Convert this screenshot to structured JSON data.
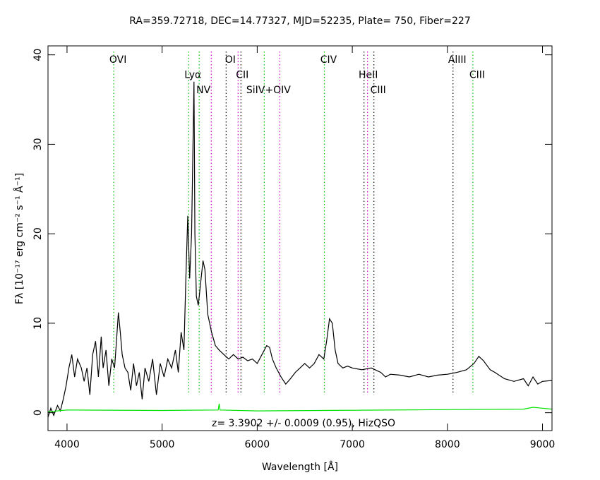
{
  "chart_data": {
    "type": "line",
    "title": "RA=359.72718, DEC=14.77327, MJD=52235, Plate=  750, Fiber=227",
    "xlabel": "Wavelength [Å]",
    "ylabel": "Fλ [10⁻¹⁷ erg cm⁻² s⁻¹ Å⁻¹]",
    "annotation": "z= 3.3902 +/- 0.0009 (0.95), HizQSO",
    "xlim": [
      3800,
      9100
    ],
    "xticks": [
      4000,
      5000,
      6000,
      7000,
      8000,
      9000
    ],
    "ylim": [
      -2,
      41
    ],
    "yticks": [
      0,
      10,
      20,
      30,
      40
    ],
    "series": [
      {
        "color": "#000000",
        "x": [
          3800,
          3830,
          3860,
          3900,
          3930,
          3960,
          3990,
          4020,
          4050,
          4080,
          4110,
          4150,
          4180,
          4210,
          4240,
          4270,
          4300,
          4330,
          4360,
          4380,
          4410,
          4440,
          4470,
          4500,
          4520,
          4540,
          4560,
          4580,
          4610,
          4640,
          4670,
          4700,
          4730,
          4760,
          4790,
          4820,
          4860,
          4900,
          4940,
          4980,
          5020,
          5060,
          5100,
          5140,
          5170,
          5200,
          5230,
          5250,
          5270,
          5290,
          5310,
          5325,
          5335,
          5345,
          5360,
          5380,
          5410,
          5430,
          5450,
          5480,
          5520,
          5560,
          5600,
          5650,
          5700,
          5750,
          5800,
          5850,
          5900,
          5950,
          6000,
          6050,
          6100,
          6130,
          6160,
          6200,
          6250,
          6300,
          6350,
          6400,
          6450,
          6500,
          6550,
          6600,
          6650,
          6700,
          6730,
          6760,
          6790,
          6820,
          6850,
          6900,
          6950,
          7000,
          7100,
          7200,
          7300,
          7350,
          7400,
          7500,
          7600,
          7700,
          7800,
          7900,
          8000,
          8100,
          8200,
          8280,
          8330,
          8380,
          8450,
          8500,
          8600,
          8700,
          8800,
          8850,
          8900,
          8950,
          9000,
          9100
        ],
        "values": [
          -0.5,
          0.5,
          -0.3,
          0.8,
          0.2,
          1.5,
          3,
          5,
          6.5,
          4,
          6,
          5,
          3.5,
          5,
          2,
          6.5,
          8,
          4,
          8.5,
          5,
          7,
          3,
          6,
          5,
          8,
          11.2,
          9,
          6.5,
          5,
          4.5,
          2.5,
          5.5,
          3,
          4.5,
          1.5,
          5,
          3.5,
          6,
          2,
          5.5,
          4,
          6,
          5,
          7,
          4.5,
          9,
          7,
          15,
          22,
          15,
          20,
          30,
          37,
          20,
          13,
          12,
          15,
          17,
          16,
          11,
          9,
          7.5,
          7,
          6.5,
          6,
          6.5,
          6,
          6.2,
          5.8,
          6,
          5.5,
          6.5,
          7.5,
          7.3,
          6,
          5,
          4,
          3.2,
          3.8,
          4.5,
          5,
          5.5,
          5,
          5.5,
          6.5,
          6,
          8,
          10.5,
          10,
          7,
          5.5,
          5,
          5.2,
          5,
          4.8,
          5,
          4.5,
          4,
          4.3,
          4.2,
          4,
          4.3,
          4,
          4.2,
          4.3,
          4.5,
          4.8,
          5.5,
          6.3,
          5.8,
          4.8,
          4.5,
          3.8,
          3.5,
          3.8,
          3,
          4,
          3.2,
          3.5,
          3.6
        ]
      },
      {
        "color": "#00e000",
        "x": [
          3800,
          4000,
          5000,
          5590,
          5600,
          5610,
          6000,
          8800,
          8900,
          9100
        ],
        "values": [
          0.1,
          0.3,
          0.25,
          0.3,
          1,
          0.3,
          0.2,
          0.4,
          0.6,
          0.4
        ]
      }
    ],
    "lines": [
      {
        "x": 4491,
        "color": "#00c000",
        "label": "OVI"
      },
      {
        "x": 5279,
        "color": "#00c000",
        "label": "Lyα"
      },
      {
        "x": 5390,
        "color": "#00c000",
        "label": "NV"
      },
      {
        "x": 5517,
        "color": "#d000d0"
      },
      {
        "x": 5673,
        "color": "#000000",
        "label": "OI"
      },
      {
        "x": 5799,
        "color": "#d000d0",
        "label": "CII"
      },
      {
        "x": 5829,
        "color": "#000000"
      },
      {
        "x": 6074,
        "color": "#00c000",
        "label": "SiIV+OIV"
      },
      {
        "x": 6238,
        "color": "#d000d0"
      },
      {
        "x": 6706,
        "color": "#00c000",
        "label": "CIV"
      },
      {
        "x": 7123,
        "color": "#000000",
        "label": "HeII"
      },
      {
        "x": 7160,
        "color": "#d000d0"
      },
      {
        "x": 7227,
        "color": "#000000",
        "label": "CIII"
      },
      {
        "x": 8059,
        "color": "#000000",
        "label": "AlIII"
      },
      {
        "x": 8268,
        "color": "#00c000",
        "label": "CIII"
      }
    ]
  }
}
